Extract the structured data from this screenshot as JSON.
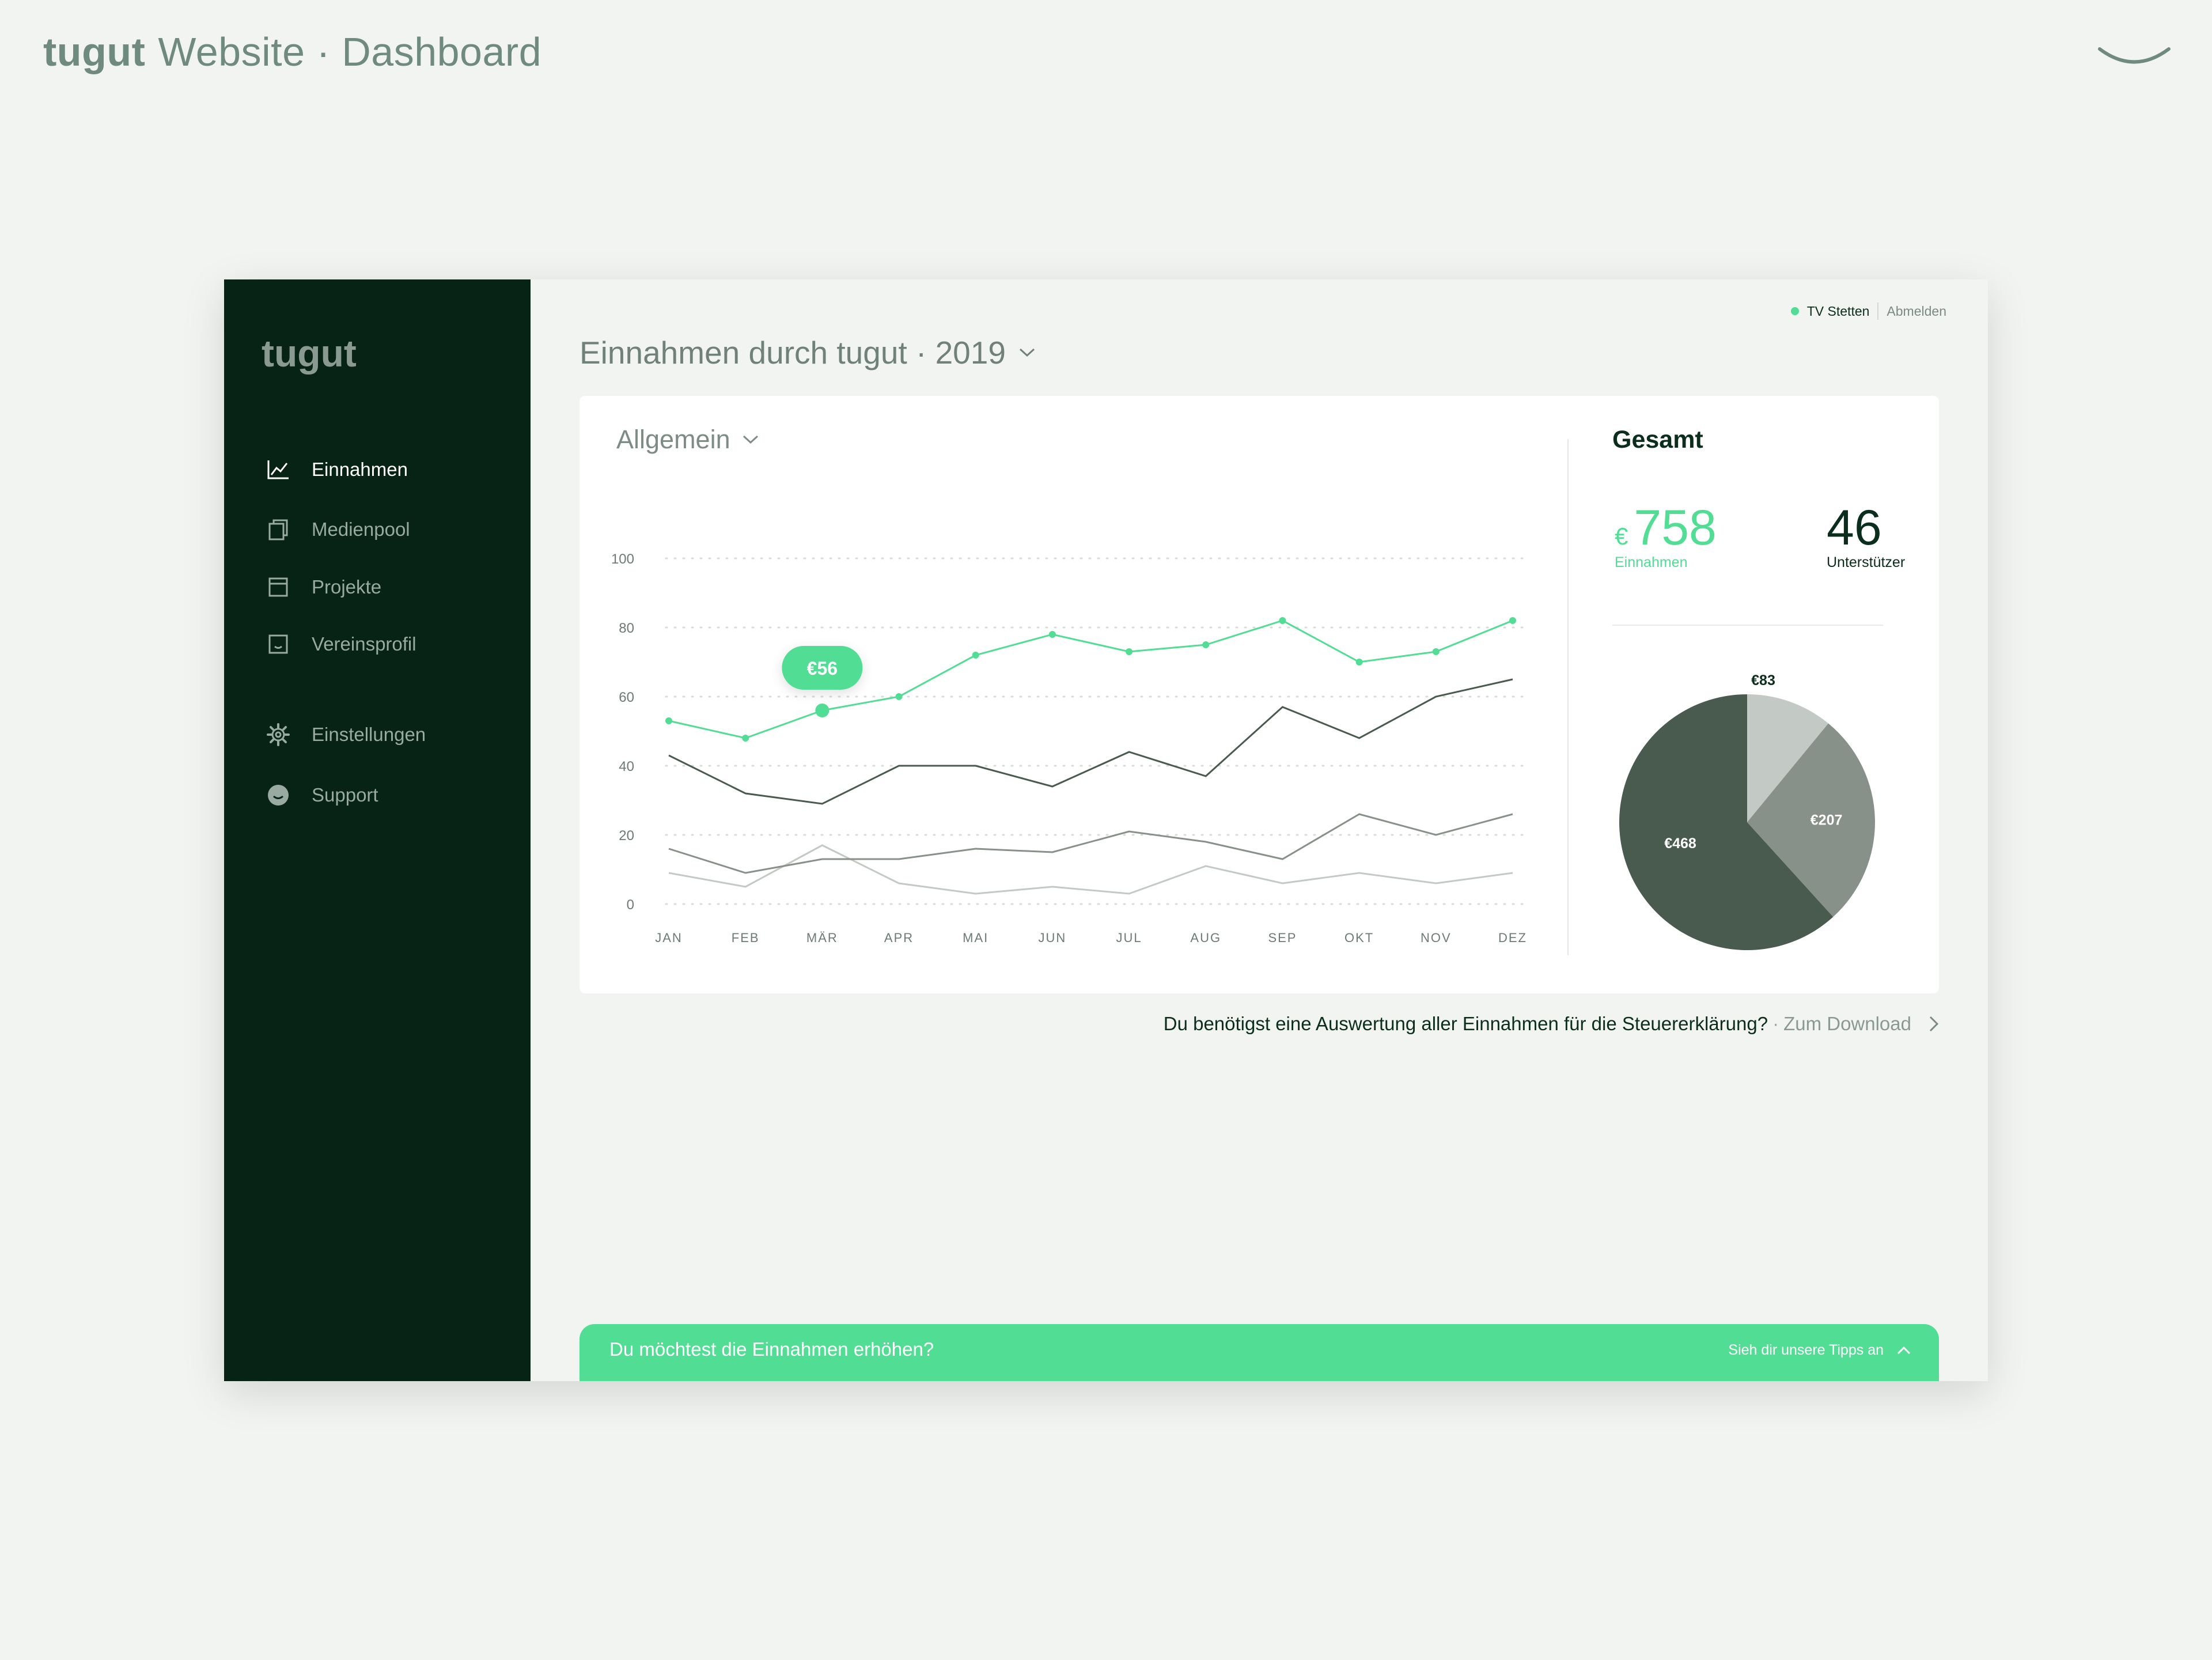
{
  "presentation": {
    "brand": "tugut",
    "title": "Website · Dashboard"
  },
  "sidebar": {
    "logo": "tugut",
    "items": [
      {
        "label": "Einnahmen",
        "icon": "chart-line-icon",
        "active": true
      },
      {
        "label": "Medienpool",
        "icon": "copy-icon"
      },
      {
        "label": "Projekte",
        "icon": "window-icon"
      },
      {
        "label": "Vereinsprofil",
        "icon": "profile-icon"
      },
      {
        "label": "Einstellungen",
        "icon": "gear-icon"
      },
      {
        "label": "Support",
        "icon": "smiley-icon"
      }
    ]
  },
  "topbar": {
    "club": "TV Stetten",
    "logout": "Abmelden"
  },
  "header": {
    "title": "Einnahmen durch tugut · 2019"
  },
  "filter": {
    "selected": "Allgemein"
  },
  "tooltip": {
    "label": "€56"
  },
  "totals": {
    "heading": "Gesamt",
    "currency": "€",
    "einnahmen_value": "758",
    "einnahmen_label": "Einnahmen",
    "unterstuetzer_value": "46",
    "unterstuetzer_label": "Unterstützer"
  },
  "hint": {
    "text": "Du benötigst eine Auswertung aller Einnahmen für die Steuererklärung?",
    "separator": "·",
    "link": "Zum Download"
  },
  "banner": {
    "text": "Du möchtest die Einnahmen erhöhen?",
    "link": "Sieh dir unsere Tipps an"
  },
  "colors": {
    "accent": "#52dd94",
    "sidebar": "#072315",
    "dark_series": "#495a4f",
    "mid_series": "#889189",
    "light_series": "#c3c9c4"
  },
  "chart_data": [
    {
      "type": "line",
      "categories": [
        "JAN",
        "FEB",
        "MÄR",
        "APR",
        "MAI",
        "JUN",
        "JUL",
        "AUG",
        "SEP",
        "OKT",
        "NOV",
        "DEZ"
      ],
      "yticks": [
        0,
        20,
        40,
        60,
        80,
        100
      ],
      "ylim": [
        0,
        100
      ],
      "grid": true,
      "series": [
        {
          "values": [
            53,
            48,
            56,
            60,
            72,
            78,
            73,
            75,
            82,
            70,
            73,
            82
          ],
          "color": "#52dd94",
          "markers": true
        },
        {
          "values": [
            43,
            32,
            29,
            40,
            40,
            34,
            44,
            37,
            57,
            48,
            60,
            65
          ],
          "color": "#495a4f"
        },
        {
          "values": [
            16,
            9,
            13,
            13,
            16,
            15,
            21,
            18,
            13,
            26,
            20,
            26
          ],
          "color": "#889189"
        },
        {
          "values": [
            9,
            5,
            17,
            6,
            3,
            5,
            3,
            11,
            6,
            9,
            6,
            9
          ],
          "color": "#c3c9c4"
        }
      ],
      "highlight": {
        "category": "MÄR",
        "value": 56
      }
    },
    {
      "type": "pie",
      "slices": [
        {
          "label": "€83",
          "value": 83,
          "color": "#c3c9c4"
        },
        {
          "label": "€207",
          "value": 207,
          "color": "#889189"
        },
        {
          "label": "€468",
          "value": 468,
          "color": "#495a4f"
        }
      ]
    }
  ]
}
